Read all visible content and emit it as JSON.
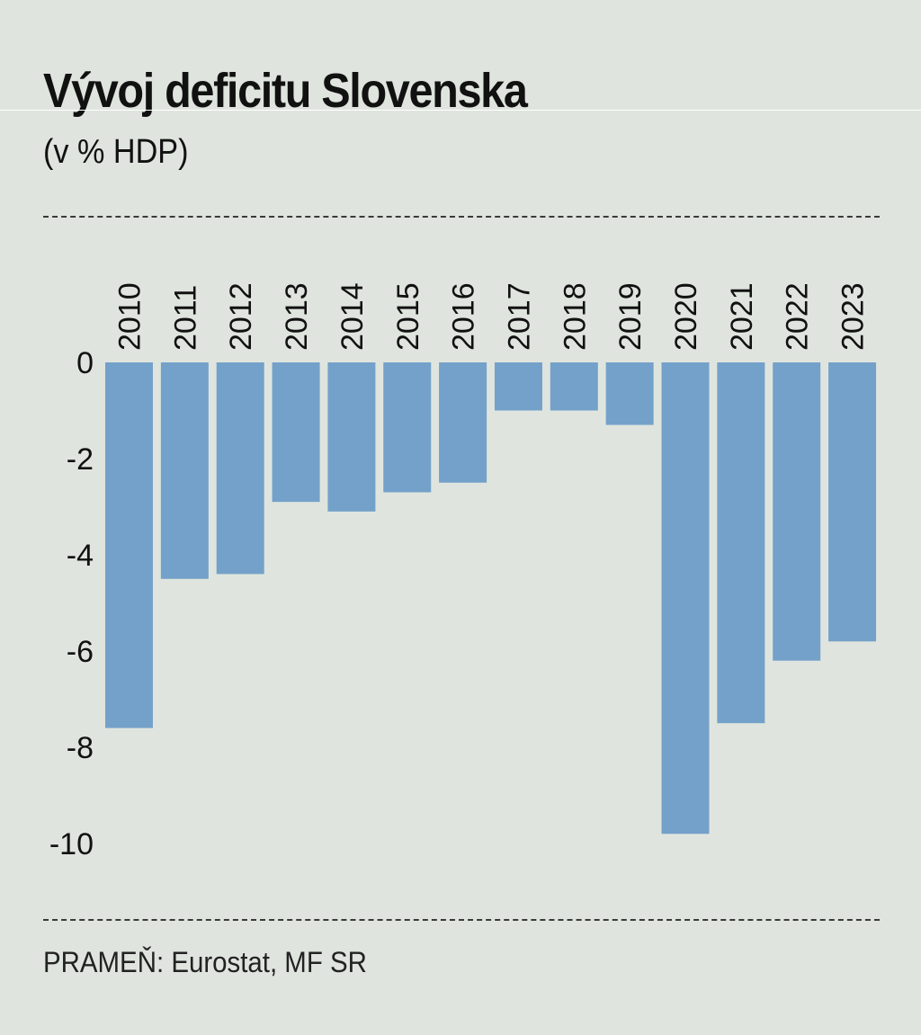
{
  "header": {
    "title": "Vývoj deficitu Slovenska",
    "subtitle": "(v % HDP)"
  },
  "footer": {
    "source": "PRAMEŇ: Eurostat, MF SR"
  },
  "colors": {
    "bar": "#74a1c9",
    "background": "#dfe5de",
    "text": "#111111"
  },
  "chart_data": {
    "type": "bar",
    "title": "Vývoj deficitu Slovenska",
    "subtitle": "(v % HDP)",
    "xlabel": "",
    "ylabel": "",
    "categories": [
      "2010",
      "2011",
      "2012",
      "2013",
      "2014",
      "2015",
      "2016",
      "2017",
      "2018",
      "2019",
      "2020",
      "2021",
      "2022",
      "2023"
    ],
    "values": [
      -7.6,
      -4.5,
      -4.4,
      -2.9,
      -3.1,
      -2.7,
      -2.5,
      -1.0,
      -1.0,
      -1.3,
      -9.8,
      -7.5,
      -6.2,
      -5.8
    ],
    "yticks": [
      "0",
      "-2",
      "-4",
      "-6",
      "-8",
      "-10"
    ],
    "ytick_values": [
      0,
      -2,
      -4,
      -6,
      -8,
      -10
    ],
    "ylim": [
      -10,
      0
    ],
    "grid": false,
    "legend": "none"
  }
}
